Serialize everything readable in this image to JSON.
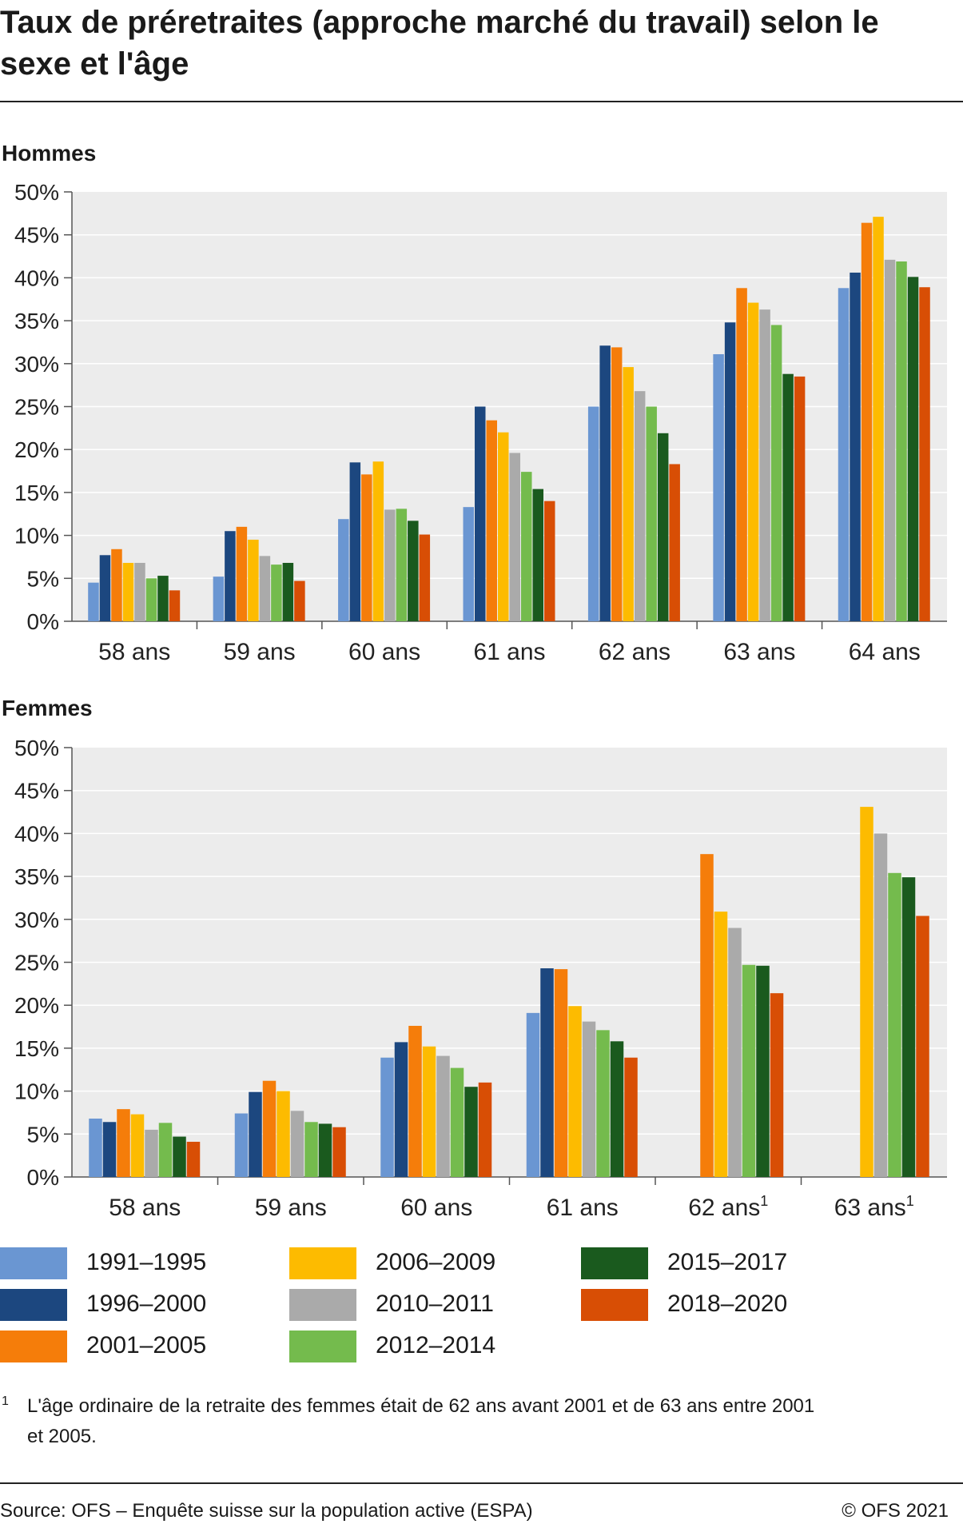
{
  "title": "Taux de préretraites (approche marché du travail) selon le sexe et l'âge",
  "colors": {
    "1991–1995": "#6a96d2",
    "1996–2000": "#1c477f",
    "2001–2005": "#f57d0a",
    "2006–2009": "#fdbb00",
    "2010–2011": "#aaaaaa",
    "2012–2014": "#74bb4d",
    "2015–2017": "#1a5a1e",
    "2018–2020": "#d84e05",
    "plot_background": "#ececec",
    "gridline": "#ffffff"
  },
  "legend": [
    "1991–1995",
    "1996–2000",
    "2001–2005",
    "2006–2009",
    "2010–2011",
    "2012–2014",
    "2015–2017",
    "2018–2020"
  ],
  "chart_data": [
    {
      "type": "bar",
      "title": "Hommes",
      "categories": [
        "58 ans",
        "59 ans",
        "60 ans",
        "61 ans",
        "62 ans",
        "63 ans",
        "64 ans"
      ],
      "category_superscripts": [
        "",
        "",
        "",
        "",
        "",
        "",
        ""
      ],
      "ylim": [
        0,
        50
      ],
      "yticks": [
        "0%",
        "5%",
        "10%",
        "15%",
        "20%",
        "25%",
        "30%",
        "35%",
        "40%",
        "45%",
        "50%"
      ],
      "grid": true,
      "series": [
        {
          "name": "1991–1995",
          "values": [
            4.5,
            5.2,
            11.9,
            13.3,
            25.0,
            31.1,
            38.8
          ]
        },
        {
          "name": "1996–2000",
          "values": [
            7.7,
            10.5,
            18.5,
            25.0,
            32.1,
            34.8,
            40.6
          ]
        },
        {
          "name": "2001–2005",
          "values": [
            8.4,
            11.0,
            17.1,
            23.4,
            31.9,
            38.8,
            46.4
          ]
        },
        {
          "name": "2006–2009",
          "values": [
            6.8,
            9.5,
            18.6,
            22.0,
            29.6,
            37.1,
            47.1
          ]
        },
        {
          "name": "2010–2011",
          "values": [
            6.8,
            7.6,
            13.0,
            19.6,
            26.8,
            36.3,
            42.1
          ]
        },
        {
          "name": "2012–2014",
          "values": [
            5.0,
            6.6,
            13.1,
            17.4,
            25.0,
            34.5,
            41.9
          ]
        },
        {
          "name": "2015–2017",
          "values": [
            5.3,
            6.8,
            11.7,
            15.4,
            21.9,
            28.8,
            40.1
          ]
        },
        {
          "name": "2018–2020",
          "values": [
            3.6,
            4.7,
            10.1,
            14.0,
            18.3,
            28.5,
            38.9
          ]
        }
      ]
    },
    {
      "type": "bar",
      "title": "Femmes",
      "categories": [
        "58 ans",
        "59 ans",
        "60 ans",
        "61 ans",
        "62 ans",
        "63 ans"
      ],
      "category_superscripts": [
        "",
        "",
        "",
        "",
        "1",
        "1"
      ],
      "ylim": [
        0,
        50
      ],
      "yticks": [
        "0%",
        "5%",
        "10%",
        "15%",
        "20%",
        "25%",
        "30%",
        "35%",
        "40%",
        "45%",
        "50%"
      ],
      "grid": true,
      "series": [
        {
          "name": "1991–1995",
          "values": [
            6.8,
            7.4,
            13.9,
            19.1,
            null,
            null
          ]
        },
        {
          "name": "1996–2000",
          "values": [
            6.4,
            9.9,
            15.7,
            24.3,
            null,
            null
          ]
        },
        {
          "name": "2001–2005",
          "values": [
            7.9,
            11.2,
            17.6,
            24.2,
            37.6,
            null
          ]
        },
        {
          "name": "2006–2009",
          "values": [
            7.3,
            10.0,
            15.2,
            19.9,
            30.9,
            43.1
          ]
        },
        {
          "name": "2010–2011",
          "values": [
            5.5,
            7.7,
            14.1,
            18.1,
            29.0,
            40.0
          ]
        },
        {
          "name": "2012–2014",
          "values": [
            6.3,
            6.4,
            12.7,
            17.1,
            24.7,
            35.4
          ]
        },
        {
          "name": "2015–2017",
          "values": [
            4.7,
            6.2,
            10.5,
            15.8,
            24.6,
            34.9
          ]
        },
        {
          "name": "2018–2020",
          "values": [
            4.1,
            5.8,
            11.0,
            13.9,
            21.4,
            30.4
          ]
        }
      ]
    }
  ],
  "footnote": {
    "mark": "1",
    "text": "L'âge ordinaire de la retraite des femmes était de 62 ans avant 2001 et de 63 ans entre 2001 et 2005."
  },
  "source": "Source: OFS – Enquête suisse sur la population active (ESPA)",
  "copyright": "© OFS 2021"
}
